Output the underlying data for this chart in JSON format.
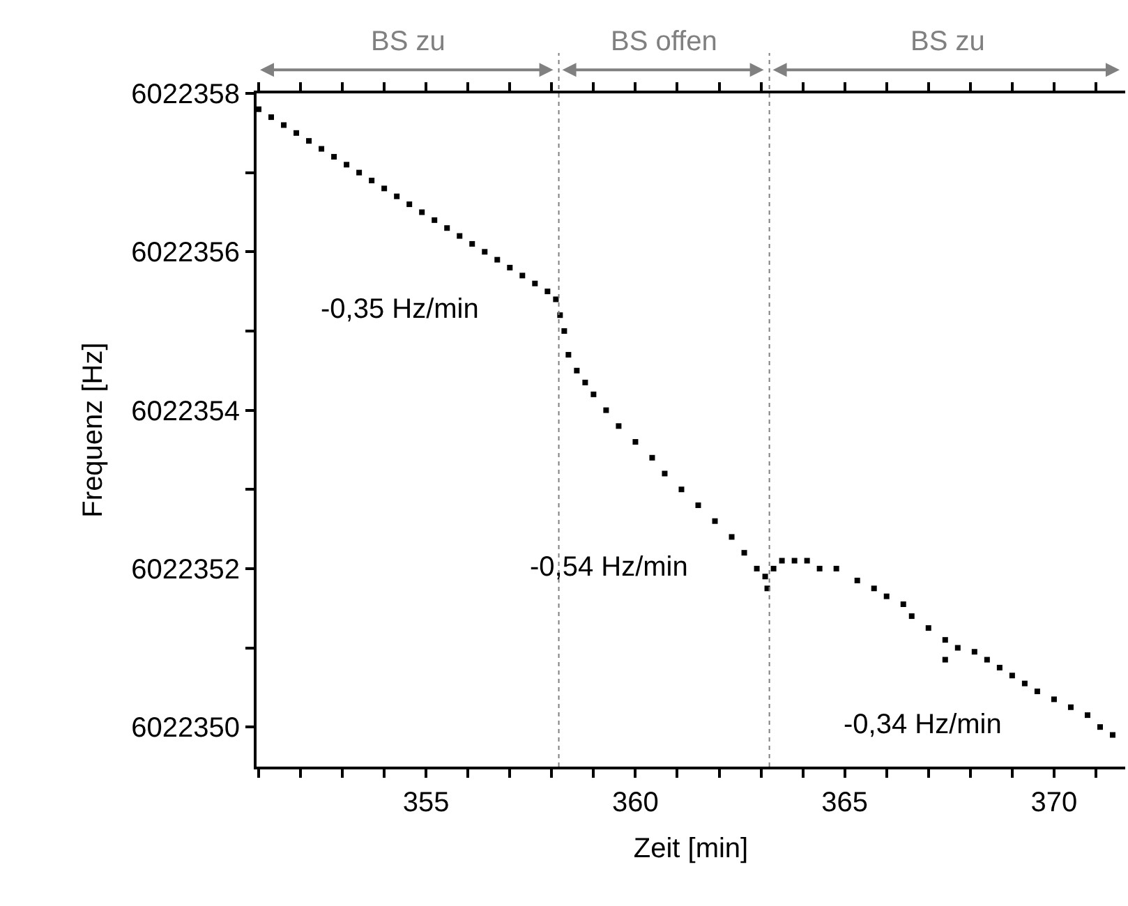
{
  "chart_data": {
    "type": "scatter",
    "xlabel": "Zeit [min]",
    "ylabel": "Frequenz [Hz]",
    "marker": "square",
    "xlim": [
      350.95,
      371.7
    ],
    "ylim": [
      6022349.5,
      6022358
    ],
    "xticks": [
      {
        "value": 351,
        "label": null
      },
      {
        "value": 352,
        "label": null
      },
      {
        "value": 353,
        "label": null
      },
      {
        "value": 354,
        "label": null
      },
      355,
      {
        "value": 356,
        "label": null
      },
      {
        "value": 357,
        "label": null
      },
      {
        "value": 358,
        "label": null
      },
      {
        "value": 359,
        "label": null
      },
      360,
      {
        "value": 361,
        "label": null
      },
      {
        "value": 362,
        "label": null
      },
      {
        "value": 363,
        "label": null
      },
      {
        "value": 364,
        "label": null
      },
      365,
      {
        "value": 366,
        "label": null
      },
      {
        "value": 367,
        "label": null
      },
      {
        "value": 368,
        "label": null
      },
      {
        "value": 369,
        "label": null
      },
      370,
      {
        "value": 371,
        "label": null
      }
    ],
    "yticks": [
      6022350,
      {
        "value": 6022351,
        "label": null
      },
      6022352,
      {
        "value": 6022353,
        "label": null
      },
      6022354,
      {
        "value": 6022355,
        "label": null
      },
      6022356,
      {
        "value": 6022357,
        "label": null
      },
      6022358
    ],
    "series": [
      {
        "color": "#000000",
        "x": [
          351.0,
          351.3,
          351.6,
          351.9,
          352.2,
          352.5,
          352.8,
          353.1,
          353.4,
          353.7,
          354.0,
          354.3,
          354.6,
          354.9,
          355.2,
          355.5,
          355.8,
          356.1,
          356.4,
          356.7,
          357.0,
          357.3,
          357.6,
          357.9,
          358.1,
          358.2,
          358.3,
          358.4,
          358.6,
          358.8,
          359.0,
          359.3,
          359.6,
          360.0,
          360.4,
          360.7,
          361.1,
          361.5,
          361.9,
          362.3,
          362.6,
          362.9,
          363.1,
          363.15,
          363.3,
          363.5,
          363.8,
          364.1,
          364.4,
          364.8,
          365.3,
          365.7,
          366.0,
          366.4,
          366.6,
          367.0,
          367.4,
          367.4,
          367.7,
          368.1,
          368.4,
          368.7,
          369.0,
          369.3,
          369.6,
          370.0,
          370.4,
          370.8,
          371.1,
          371.4
        ],
        "values": [
          6022357.8,
          6022357.7,
          6022357.6,
          6022357.5,
          6022357.4,
          6022357.3,
          6022357.2,
          6022357.1,
          6022357.0,
          6022356.9,
          6022356.8,
          6022356.7,
          6022356.6,
          6022356.5,
          6022356.4,
          6022356.3,
          6022356.2,
          6022356.1,
          6022356.0,
          6022355.9,
          6022355.8,
          6022355.7,
          6022355.6,
          6022355.5,
          6022355.4,
          6022355.2,
          6022355.0,
          6022354.7,
          6022354.5,
          6022354.35,
          6022354.2,
          6022354.0,
          6022353.8,
          6022353.6,
          6022353.4,
          6022353.2,
          6022353.0,
          6022352.8,
          6022352.6,
          6022352.4,
          6022352.2,
          6022352.0,
          6022351.9,
          6022351.75,
          6022352.0,
          6022352.1,
          6022352.1,
          6022352.1,
          6022352.0,
          6022352.0,
          6022351.85,
          6022351.75,
          6022351.65,
          6022351.55,
          6022351.4,
          6022351.25,
          6022351.1,
          6022350.85,
          6022351.0,
          6022350.95,
          6022350.85,
          6022350.75,
          6022350.65,
          6022350.55,
          6022350.45,
          6022350.35,
          6022350.25,
          6022350.15,
          6022350.0,
          6022349.9
        ]
      }
    ],
    "ref_lines": [
      {
        "axis": "x",
        "value": 358.17,
        "color": "#808080",
        "line_style": "dotted"
      },
      {
        "axis": "x",
        "value": 363.2,
        "color": "#808080",
        "line_style": "dotted"
      }
    ],
    "annotations": [
      "BS zu",
      "BS offen",
      "BS zu",
      "-0,35 Hz/min",
      "-0,54 Hz/min",
      "-0,34 Hz/min"
    ]
  }
}
